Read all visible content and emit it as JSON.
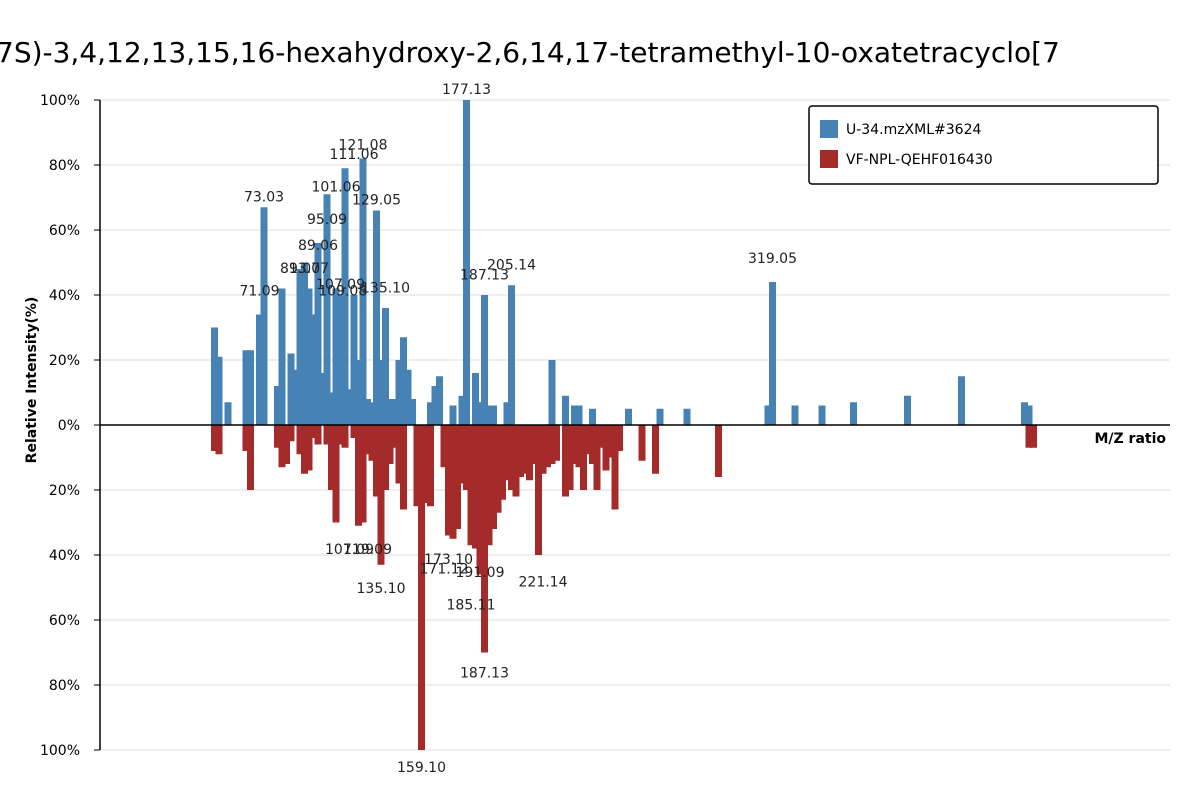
{
  "chart_data": {
    "type": "bar",
    "title": "7S)-3,4,12,13,15,16-hexahydroxy-2,6,14,17-tetramethyl-10-oxatetracyclo[7",
    "xlabel": "M/Z ratio",
    "ylabel": "Relative Intensity(%)",
    "yticks_top": [
      "100%",
      "80%",
      "60%",
      "40%",
      "20%",
      "0%"
    ],
    "yticks_bottom": [
      "20%",
      "40%",
      "60%",
      "80%",
      "100%"
    ],
    "ylim": [
      -100,
      100
    ],
    "xlim": [
      38,
      340
    ],
    "grid": true,
    "legend_position": "top-right",
    "colors": {
      "top": "#4682b4",
      "bottom": "#a52a2a"
    },
    "series": [
      {
        "name": "U-34.mzXML#3624",
        "color": "#4682b4",
        "peaks": [
          [
            55,
            30
          ],
          [
            56,
            21
          ],
          [
            58,
            7
          ],
          [
            62,
            23
          ],
          [
            63,
            23
          ],
          [
            65,
            34
          ],
          [
            66,
            67
          ],
          [
            69,
            12
          ],
          [
            70,
            42
          ],
          [
            72,
            22
          ],
          [
            73,
            17
          ],
          [
            74,
            48
          ],
          [
            75,
            50
          ],
          [
            76,
            42
          ],
          [
            77,
            34
          ],
          [
            78,
            56
          ],
          [
            79,
            16
          ],
          [
            80,
            71
          ],
          [
            81,
            10
          ],
          [
            82,
            42
          ],
          [
            83,
            40
          ],
          [
            84,
            79
          ],
          [
            85,
            11
          ],
          [
            86,
            40
          ],
          [
            87,
            20
          ],
          [
            88,
            82
          ],
          [
            89,
            8
          ],
          [
            90,
            7
          ],
          [
            91,
            66
          ],
          [
            92,
            20
          ],
          [
            93,
            36
          ],
          [
            94,
            8
          ],
          [
            95,
            8
          ],
          [
            96,
            20
          ],
          [
            97,
            27
          ],
          [
            98,
            17
          ],
          [
            99,
            8
          ],
          [
            103,
            7
          ],
          [
            104,
            12
          ],
          [
            105,
            15
          ],
          [
            108,
            6
          ],
          [
            110,
            9
          ],
          [
            111,
            100
          ],
          [
            113,
            16
          ],
          [
            114,
            7
          ],
          [
            115,
            40
          ],
          [
            116,
            6
          ],
          [
            117,
            6
          ],
          [
            120,
            7
          ],
          [
            121,
            43
          ],
          [
            130,
            20
          ],
          [
            133,
            9
          ],
          [
            135,
            6
          ],
          [
            136,
            6
          ],
          [
            139,
            5
          ],
          [
            147,
            5
          ],
          [
            154,
            5
          ],
          [
            160,
            5
          ],
          [
            178,
            6
          ],
          [
            179,
            44
          ],
          [
            184,
            6
          ],
          [
            190,
            6
          ],
          [
            197,
            7
          ],
          [
            209,
            9
          ],
          [
            221,
            15
          ],
          [
            235,
            7
          ],
          [
            236,
            6
          ]
        ],
        "labels": [
          {
            "mz": 65.0,
            "text": "71.09",
            "y": 38
          },
          {
            "mz": 66.0,
            "text": "73.03",
            "y": 67
          },
          {
            "mz": 74.0,
            "text": "81.07",
            "y": 45
          },
          {
            "mz": 76.0,
            "text": "93.07",
            "y": 45
          },
          {
            "mz": 78.0,
            "text": "89.06",
            "y": 52
          },
          {
            "mz": 80.0,
            "text": "95.09",
            "y": 60
          },
          {
            "mz": 82.0,
            "text": "101.06",
            "y": 70
          },
          {
            "mz": 83.0,
            "text": "107.09",
            "y": 40
          },
          {
            "mz": 83.5,
            "text": "109.08",
            "y": 38
          },
          {
            "mz": 86.0,
            "text": "111.06",
            "y": 80
          },
          {
            "mz": 88.0,
            "text": "121.08",
            "y": 83
          },
          {
            "mz": 91.0,
            "text": "129.05",
            "y": 66
          },
          {
            "mz": 93.0,
            "text": "135.10",
            "y": 39
          },
          {
            "mz": 111.0,
            "text": "177.13",
            "y": 100
          },
          {
            "mz": 115.0,
            "text": "187.13",
            "y": 43
          },
          {
            "mz": 121.0,
            "text": "205.14",
            "y": 46
          },
          {
            "mz": 179.0,
            "text": "319.05",
            "y": 48
          }
        ]
      },
      {
        "name": "VF-NPL-QEHF016430",
        "color": "#a52a2a",
        "peaks": [
          [
            55,
            8
          ],
          [
            56,
            9
          ],
          [
            62,
            8
          ],
          [
            63,
            20
          ],
          [
            69,
            7
          ],
          [
            70,
            13
          ],
          [
            71,
            12
          ],
          [
            72,
            5
          ],
          [
            74,
            9
          ],
          [
            75,
            15
          ],
          [
            76,
            14
          ],
          [
            77,
            4
          ],
          [
            78,
            6
          ],
          [
            80,
            6
          ],
          [
            81,
            20
          ],
          [
            82,
            30
          ],
          [
            83,
            6
          ],
          [
            84,
            7
          ],
          [
            86,
            4
          ],
          [
            87,
            31
          ],
          [
            88,
            30
          ],
          [
            89,
            9
          ],
          [
            90,
            11
          ],
          [
            91,
            22
          ],
          [
            92,
            43
          ],
          [
            93,
            20
          ],
          [
            94,
            12
          ],
          [
            95,
            7
          ],
          [
            96,
            18
          ],
          [
            97,
            26
          ],
          [
            100,
            25
          ],
          [
            101,
            100
          ],
          [
            102,
            24
          ],
          [
            103,
            25
          ],
          [
            106,
            13
          ],
          [
            107,
            34
          ],
          [
            108,
            35
          ],
          [
            109,
            32
          ],
          [
            110,
            18
          ],
          [
            111,
            20
          ],
          [
            112,
            37
          ],
          [
            113,
            38
          ],
          [
            114,
            46
          ],
          [
            115,
            70
          ],
          [
            116,
            37
          ],
          [
            117,
            32
          ],
          [
            118,
            27
          ],
          [
            119,
            23
          ],
          [
            120,
            17
          ],
          [
            121,
            20
          ],
          [
            122,
            22
          ],
          [
            123,
            16
          ],
          [
            124,
            15
          ],
          [
            125,
            17
          ],
          [
            126,
            12
          ],
          [
            127,
            40
          ],
          [
            128,
            15
          ],
          [
            129,
            13
          ],
          [
            130,
            12
          ],
          [
            131,
            11
          ],
          [
            133,
            22
          ],
          [
            134,
            20
          ],
          [
            135,
            12
          ],
          [
            136,
            13
          ],
          [
            137,
            20
          ],
          [
            138,
            9
          ],
          [
            139,
            12
          ],
          [
            140,
            20
          ],
          [
            141,
            7
          ],
          [
            142,
            14
          ],
          [
            143,
            10
          ],
          [
            144,
            26
          ],
          [
            145,
            8
          ],
          [
            150,
            11
          ],
          [
            153,
            15
          ],
          [
            167,
            16
          ],
          [
            236,
            7
          ],
          [
            237,
            7
          ]
        ],
        "labels": [
          {
            "mz": 85.0,
            "text": "107.09",
            "y": 36
          },
          {
            "mz": 89.0,
            "text": "119.09",
            "y": 36
          },
          {
            "mz": 92.0,
            "text": "135.10",
            "y": 48
          },
          {
            "mz": 101.0,
            "text": "159.10",
            "y": 103
          },
          {
            "mz": 106.0,
            "text": "171.12",
            "y": 42
          },
          {
            "mz": 107.0,
            "text": "173.10",
            "y": 39
          },
          {
            "mz": 112.0,
            "text": "185.11",
            "y": 53
          },
          {
            "mz": 114.0,
            "text": "191.09",
            "y": 43
          },
          {
            "mz": 115.0,
            "text": "187.13",
            "y": 74
          },
          {
            "mz": 128.0,
            "text": "221.14",
            "y": 46
          }
        ]
      }
    ]
  }
}
